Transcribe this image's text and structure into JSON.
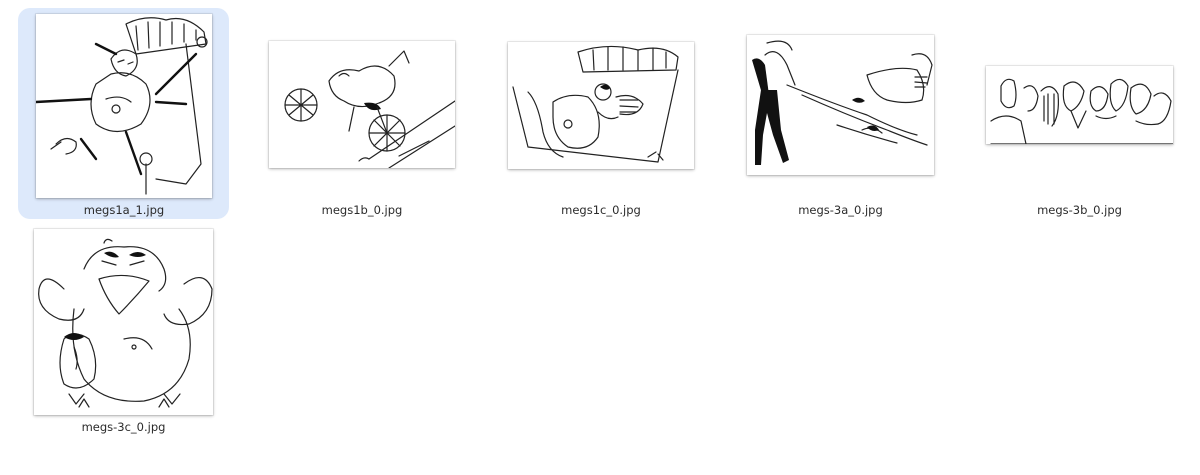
{
  "files": [
    {
      "name": "megs1a_1.jpg",
      "selected": true,
      "thumb_icon": "cartoon-sketch-bed-bound-figure"
    },
    {
      "name": "megs1b_0.jpg",
      "selected": false,
      "thumb_icon": "cartoon-sketch-unicycle-bird"
    },
    {
      "name": "megs1c_0.jpg",
      "selected": false,
      "thumb_icon": "cartoon-sketch-bed-scene"
    },
    {
      "name": "megs-3a_0.jpg",
      "selected": false,
      "thumb_icon": "cartoon-sketch-boots-figure"
    },
    {
      "name": "megs-3b_0.jpg",
      "selected": false,
      "thumb_icon": "cartoon-sketch-lineup-faces"
    },
    {
      "name": "megs-3c_0.jpg",
      "selected": false,
      "thumb_icon": "cartoon-sketch-muscle-bird"
    }
  ],
  "colors": {
    "selection": "#dde9fb",
    "label_text": "#2b2b2b",
    "background": "#ffffff"
  }
}
